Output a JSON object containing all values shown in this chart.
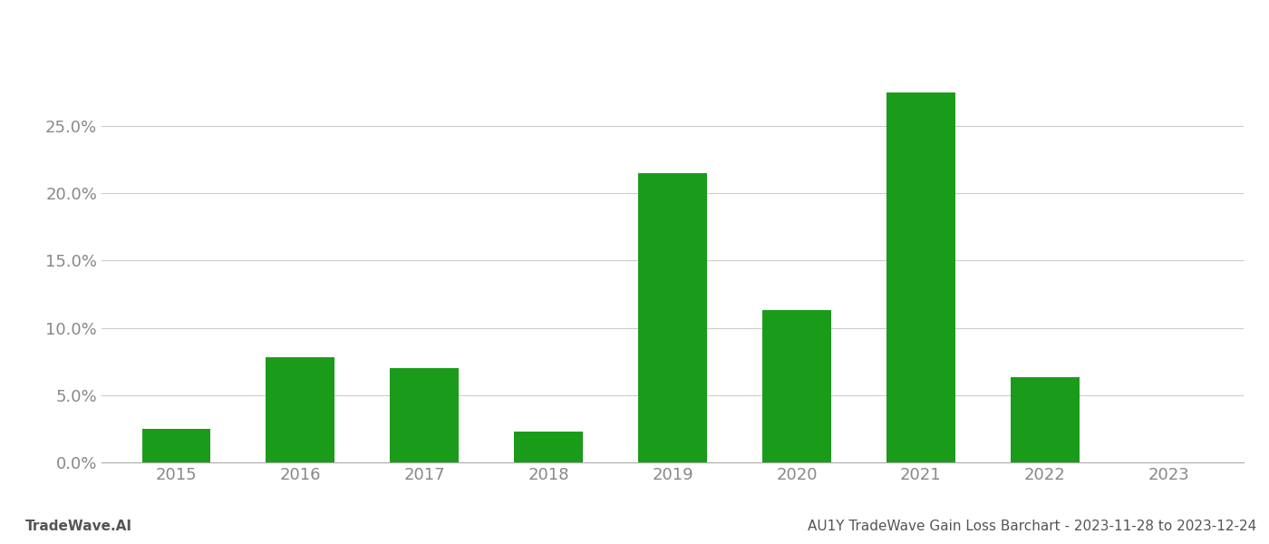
{
  "years": [
    2015,
    2016,
    2017,
    2018,
    2019,
    2020,
    2021,
    2022,
    2023
  ],
  "values": [
    0.025,
    0.078,
    0.07,
    0.023,
    0.215,
    0.113,
    0.275,
    0.063,
    0.0
  ],
  "bar_color": "#1a9c1a",
  "background_color": "#ffffff",
  "grid_color": "#cccccc",
  "ylim": [
    0,
    0.295
  ],
  "yticks": [
    0.0,
    0.05,
    0.1,
    0.15,
    0.2,
    0.25
  ],
  "xlabel": "",
  "ylabel": "",
  "footer_left": "TradeWave.AI",
  "footer_right": "AU1Y TradeWave Gain Loss Barchart - 2023-11-28 to 2023-12-24",
  "footer_fontsize": 11,
  "tick_fontsize": 13,
  "bar_width": 0.55
}
